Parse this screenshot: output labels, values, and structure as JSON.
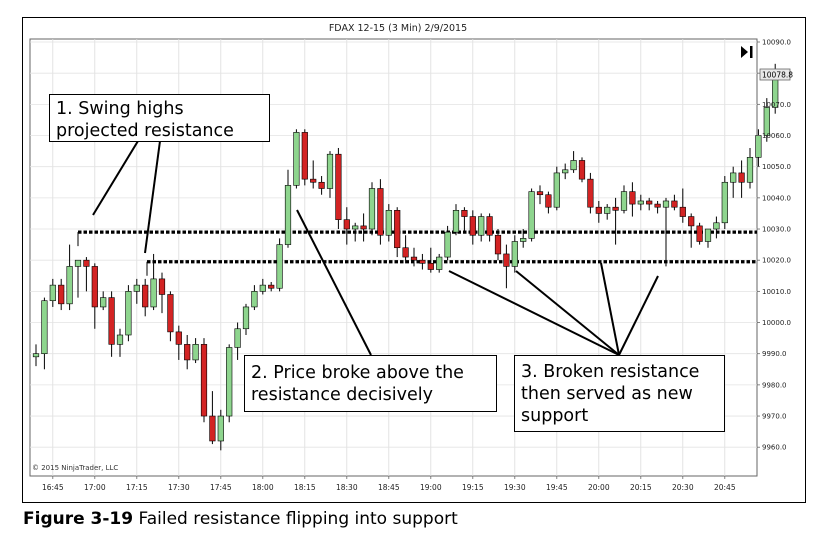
{
  "chart_title": "FDAX 12-15 (3 Min)  2/9/2015",
  "copyright": "© 2015 NinjaTrader, LLC",
  "current_price_label": "10078.8",
  "caption": {
    "figure_number": "Figure 3-19",
    "text": "Failed resistance flipping into support"
  },
  "callouts": [
    {
      "lines": [
        "1. Swing highs",
        "projected resistance"
      ]
    },
    {
      "lines": [
        "2. Price broke above the",
        "resistance decisively"
      ]
    },
    {
      "lines": [
        "3. Broken resistance",
        "then served as new",
        "support"
      ]
    }
  ],
  "colors": {
    "up": "#8ed58e",
    "down": "#d32323",
    "wick": "#000000"
  },
  "chart_data": {
    "type": "candlestick",
    "title": "FDAX 12-15 (3 Min)  2/9/2015",
    "x_tick_labels": [
      "16:45",
      "17:00",
      "17:15",
      "17:30",
      "17:45",
      "18:00",
      "18:15",
      "18:30",
      "18:45",
      "19:00",
      "19:15",
      "19:30",
      "19:45",
      "20:00",
      "20:15",
      "20:30",
      "20:45"
    ],
    "y_tick_labels": [
      "10090.0",
      "10080.0",
      "10070.0",
      "10060.0",
      "10050.0",
      "10040.0",
      "10030.0",
      "10020.0",
      "10010.0",
      "10000.0",
      "9990.0",
      "9980.0",
      "9970.0",
      "9960.0"
    ],
    "ylim": [
      9955,
      10090
    ],
    "bar_interval_minutes": 3,
    "first_bar_time": "16:39",
    "levels": [
      {
        "price": 10029
      },
      {
        "price": 10019.5
      }
    ],
    "ohlc": [
      [
        9989,
        9993,
        9986,
        9990
      ],
      [
        9990,
        10008,
        9985,
        10007
      ],
      [
        10007,
        10014,
        10005,
        10012
      ],
      [
        10012,
        10014,
        10004,
        10006
      ],
      [
        10006,
        10025,
        10004,
        10018
      ],
      [
        10018,
        10020,
        10008,
        10020
      ],
      [
        10020,
        10021,
        10010,
        10018
      ],
      [
        10018,
        10019,
        9998,
        10005
      ],
      [
        10005,
        10010,
        10004,
        10008
      ],
      [
        10008,
        10010,
        9989,
        9993
      ],
      [
        9993,
        9998,
        9989,
        9996
      ],
      [
        9996,
        10012,
        9994,
        10010
      ],
      [
        10010,
        10014,
        10006,
        10012
      ],
      [
        10012,
        10014,
        10002,
        10005
      ],
      [
        10005,
        10022,
        10004,
        10014
      ],
      [
        10014,
        10016,
        10003,
        10009
      ],
      [
        10009,
        10010,
        9994,
        9997
      ],
      [
        9997,
        9999,
        9988,
        9993
      ],
      [
        9993,
        9996,
        9985,
        9988
      ],
      [
        9988,
        9995,
        9987,
        9993
      ],
      [
        9993,
        9995,
        9968,
        9970
      ],
      [
        9970,
        9978,
        9961,
        9962
      ],
      [
        9962,
        9972,
        9959,
        9970
      ],
      [
        9970,
        9993,
        9968,
        9992
      ],
      [
        9992,
        10000,
        9988,
        9998
      ],
      [
        9998,
        10006,
        9996,
        10005
      ],
      [
        10005,
        10012,
        10004,
        10010
      ],
      [
        10010,
        10014,
        10009,
        10012
      ],
      [
        10012,
        10013,
        10010,
        10011
      ],
      [
        10011,
        10027,
        10010,
        10025
      ],
      [
        10025,
        10049,
        10024,
        10044
      ],
      [
        10044,
        10062,
        10043,
        10061
      ],
      [
        10061,
        10062,
        10044,
        10046
      ],
      [
        10046,
        10052,
        10043,
        10045
      ],
      [
        10045,
        10047,
        10041,
        10043
      ],
      [
        10043,
        10055,
        10040,
        10054
      ],
      [
        10054,
        10056,
        10030,
        10033
      ],
      [
        10033,
        10037,
        10025,
        10030
      ],
      [
        10030,
        10032,
        10026,
        10031
      ],
      [
        10031,
        10035,
        10026,
        10030
      ],
      [
        10030,
        10045,
        10028,
        10043
      ],
      [
        10043,
        10046,
        10025,
        10028
      ],
      [
        10028,
        10038,
        10026,
        10036
      ],
      [
        10036,
        10037,
        10021,
        10024
      ],
      [
        10024,
        10028,
        10019,
        10021
      ],
      [
        10021,
        10024,
        10018,
        10020
      ],
      [
        10020,
        10022,
        10017,
        10019
      ],
      [
        10019,
        10024,
        10016,
        10017
      ],
      [
        10017,
        10022,
        10016,
        10021
      ],
      [
        10021,
        10031,
        10020,
        10029
      ],
      [
        10029,
        10038,
        10028,
        10036
      ],
      [
        10036,
        10037,
        10029,
        10034
      ],
      [
        10034,
        10036,
        10025,
        10028
      ],
      [
        10028,
        10035,
        10026,
        10034
      ],
      [
        10034,
        10035,
        10026,
        10028
      ],
      [
        10028,
        10030,
        10020,
        10022
      ],
      [
        10022,
        10025,
        10011,
        10018
      ],
      [
        10018,
        10028,
        10016,
        10026
      ],
      [
        10026,
        10030,
        10024,
        10027
      ],
      [
        10027,
        10043,
        10026,
        10042
      ],
      [
        10042,
        10044,
        10038,
        10041
      ],
      [
        10041,
        10042,
        10035,
        10037
      ],
      [
        10037,
        10050,
        10036,
        10048
      ],
      [
        10048,
        10051,
        10046,
        10049
      ],
      [
        10049,
        10055,
        10048,
        10052
      ],
      [
        10052,
        10053,
        10045,
        10046
      ],
      [
        10046,
        10048,
        10035,
        10037
      ],
      [
        10037,
        10039,
        10032,
        10035
      ],
      [
        10035,
        10038,
        10033,
        10037
      ],
      [
        10037,
        10040,
        10025,
        10036
      ],
      [
        10036,
        10044,
        10035,
        10042
      ],
      [
        10042,
        10045,
        10034,
        10038
      ],
      [
        10038,
        10041,
        10036,
        10039
      ],
      [
        10039,
        10040,
        10036,
        10038
      ],
      [
        10038,
        10039,
        10035,
        10037
      ],
      [
        10037,
        10040,
        10018,
        10039
      ],
      [
        10039,
        10041,
        10036,
        10037
      ],
      [
        10037,
        10043,
        10032,
        10034
      ],
      [
        10034,
        10035,
        10024,
        10031
      ],
      [
        10031,
        10032,
        10025,
        10026
      ],
      [
        10026,
        10030,
        10024,
        10030
      ],
      [
        10030,
        10034,
        10027,
        10032
      ],
      [
        10032,
        10047,
        10030,
        10045
      ],
      [
        10045,
        10050,
        10040,
        10048
      ],
      [
        10048,
        10052,
        10040,
        10045
      ],
      [
        10045,
        10056,
        10043,
        10053
      ],
      [
        10053,
        10062,
        10050,
        10060
      ],
      [
        10060,
        10072,
        10058,
        10069
      ],
      [
        10069,
        10083,
        10067,
        10079
      ]
    ]
  }
}
